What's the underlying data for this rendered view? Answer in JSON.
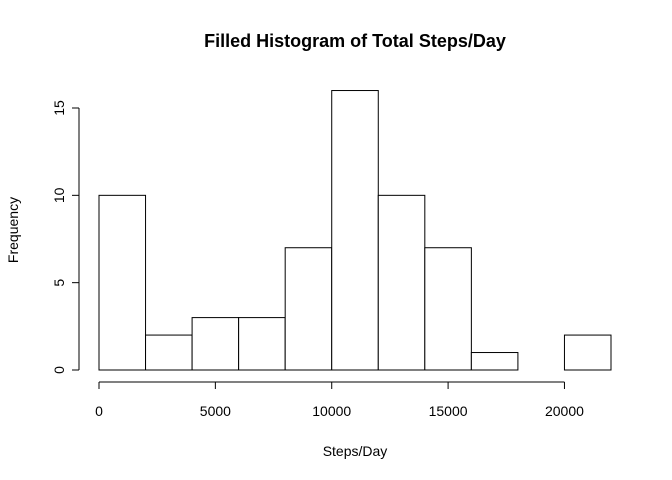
{
  "chart_data": {
    "type": "bar",
    "title": "Filled Histogram of Total Steps/Day",
    "xlabel": "Steps/Day",
    "ylabel": "Frequency",
    "bin_edges": [
      0,
      2000,
      4000,
      6000,
      8000,
      10000,
      12000,
      14000,
      16000,
      18000,
      20000,
      22000
    ],
    "values": [
      10,
      2,
      3,
      3,
      7,
      16,
      10,
      7,
      1,
      0,
      2
    ],
    "x_ticks": [
      0,
      5000,
      10000,
      15000,
      20000
    ],
    "x_tick_labels": [
      "0",
      "5000",
      "10000",
      "15000",
      "20000"
    ],
    "y_ticks": [
      0,
      5,
      10,
      15
    ],
    "y_tick_labels": [
      "0",
      "5",
      "10",
      "15"
    ],
    "xlim": [
      0,
      22000
    ],
    "ylim": [
      0,
      16
    ],
    "grid": false,
    "colors": {
      "bar_fill": "#ffffff",
      "bar_stroke": "#000000"
    }
  }
}
